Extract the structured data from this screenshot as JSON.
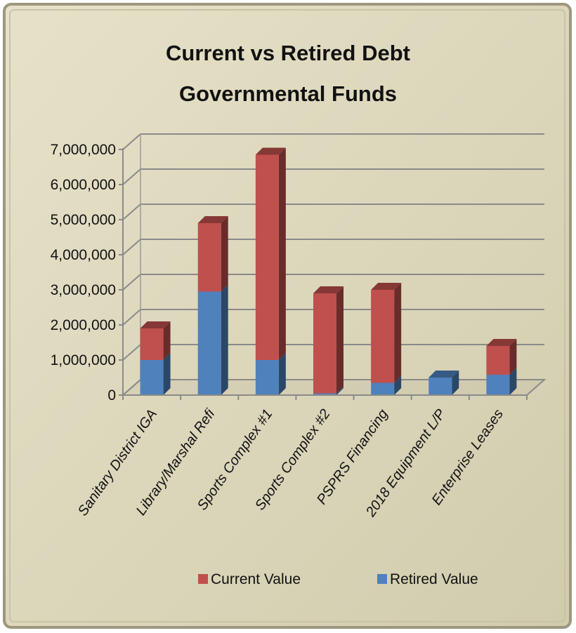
{
  "chart_data": {
    "type": "bar",
    "stacked": true,
    "three_d": true,
    "title": [
      "Current vs Retired Debt",
      "Governmental Funds"
    ],
    "categories": [
      "Sanitary District IGA",
      "Library/Marshal Refi",
      "Sports Complex #1",
      "Sports Complex #2",
      "PSPRS Financing",
      "2018 Equipment L/P",
      "Enterprise Leases"
    ],
    "series": [
      {
        "name": "Retired Value",
        "color": "#4f81bd",
        "values": [
          1000000,
          2950000,
          1000000,
          50000,
          350000,
          500000,
          580000
        ]
      },
      {
        "name": "Current Value",
        "color": "#c0504d",
        "values": [
          900000,
          1950000,
          5850000,
          2850000,
          2650000,
          0,
          820000
        ]
      }
    ],
    "yticks": [
      "0",
      "1,000,000",
      "2,000,000",
      "3,000,000",
      "4,000,000",
      "5,000,000",
      "6,000,000",
      "7,000,000"
    ],
    "ylim": [
      0,
      7000000
    ],
    "xlabel": "",
    "ylabel": "",
    "grid": true,
    "legend_position": "bottom",
    "legend_order": [
      "Current Value",
      "Retired Value"
    ],
    "background_color": "#dcd7bd"
  }
}
